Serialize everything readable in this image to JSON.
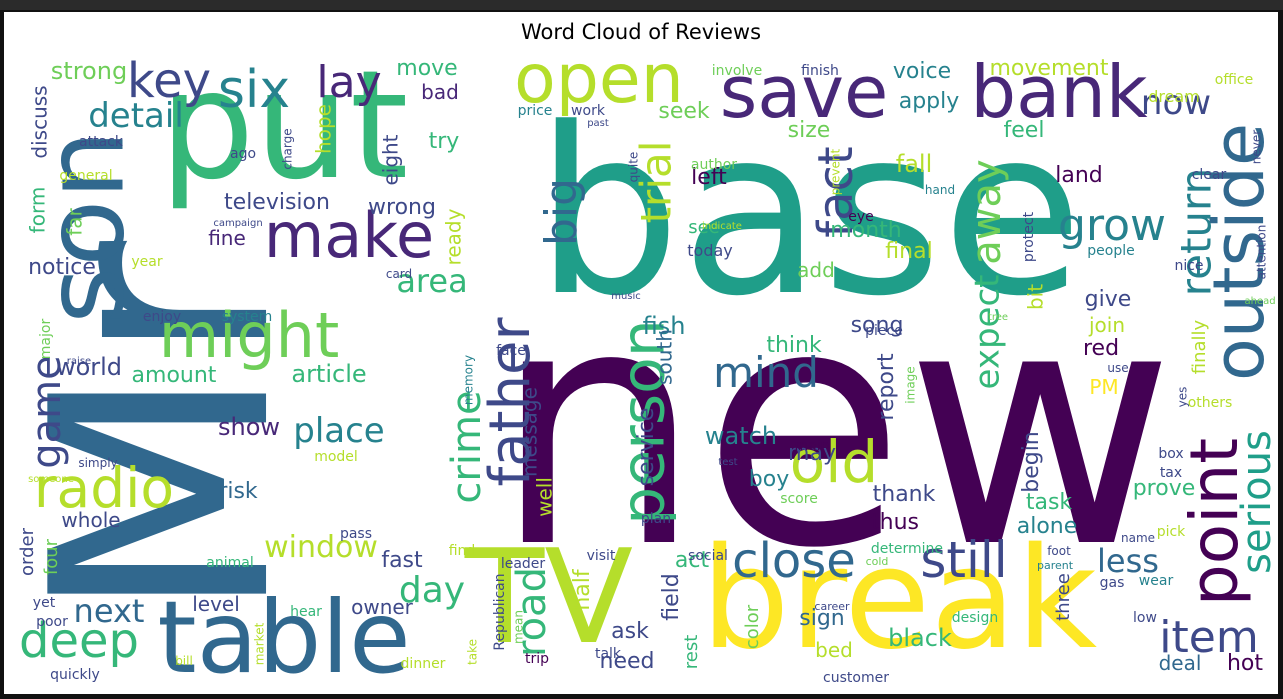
{
  "chart_data": {
    "type": "wordcloud",
    "title": "Word Cloud of Reviews",
    "background": "#ffffff",
    "palette": [
      "#440154",
      "#482878",
      "#3e4989",
      "#31688e",
      "#26828e",
      "#1f9e89",
      "#35b779",
      "#6ece58",
      "#b5de2b",
      "#fde725"
    ],
    "words": [
      {
        "text": "new",
        "color": "#440154"
      },
      {
        "text": "base",
        "color": "#1f9e89"
      },
      {
        "text": "Mr",
        "color": "#31688e"
      },
      {
        "text": "put",
        "color": "#35b779"
      },
      {
        "text": "break",
        "color": "#fde725"
      },
      {
        "text": "son",
        "color": "#31688e"
      },
      {
        "text": "TV",
        "color": "#b5de2b"
      },
      {
        "text": "table",
        "color": "#31688e"
      },
      {
        "text": "save",
        "color": "#482878"
      },
      {
        "text": "bank",
        "color": "#482878"
      },
      {
        "text": "open",
        "color": "#b5de2b"
      },
      {
        "text": "outside",
        "color": "#31688e"
      },
      {
        "text": "point",
        "color": "#440154"
      },
      {
        "text": "make",
        "color": "#482878"
      },
      {
        "text": "might",
        "color": "#6ece58"
      },
      {
        "text": "person",
        "color": "#35b779"
      },
      {
        "text": "old",
        "color": "#b5de2b"
      },
      {
        "text": "radio",
        "color": "#b5de2b"
      },
      {
        "text": "father",
        "color": "#3e4989"
      },
      {
        "text": "six",
        "color": "#26828e"
      },
      {
        "text": "close",
        "color": "#31688e"
      },
      {
        "text": "still",
        "color": "#3e4989"
      },
      {
        "text": "deep",
        "color": "#35b779"
      },
      {
        "text": "key",
        "color": "#3e4989"
      },
      {
        "text": "fact",
        "color": "#3e4989"
      },
      {
        "text": "return",
        "color": "#26828e"
      },
      {
        "text": "serious",
        "color": "#1f9e89"
      },
      {
        "text": "item",
        "color": "#3e4989"
      },
      {
        "text": "grow",
        "color": "#26828e"
      },
      {
        "text": "big",
        "color": "#31688e"
      },
      {
        "text": "trial",
        "color": "#b5de2b"
      },
      {
        "text": "mind",
        "color": "#31688e"
      },
      {
        "text": "crime",
        "color": "#35b779"
      },
      {
        "text": "lay",
        "color": "#482878"
      },
      {
        "text": "away",
        "color": "#6ece58"
      },
      {
        "text": "game",
        "color": "#3e4989"
      },
      {
        "text": "road",
        "color": "#35b779"
      },
      {
        "text": "expect",
        "color": "#35b779"
      },
      {
        "text": "detail",
        "color": "#26828e"
      },
      {
        "text": "place",
        "color": "#26828e"
      },
      {
        "text": "window",
        "color": "#b5de2b"
      },
      {
        "text": "day",
        "color": "#35b779"
      },
      {
        "text": "next",
        "color": "#31688e"
      },
      {
        "text": "now",
        "color": "#3e4989"
      },
      {
        "text": "area",
        "color": "#35b779"
      },
      {
        "text": "less",
        "color": "#31688e"
      },
      {
        "text": "fish",
        "color": "#26828e"
      },
      {
        "text": "watch",
        "color": "#26828e"
      },
      {
        "text": "article",
        "color": "#35b779"
      },
      {
        "text": "world",
        "color": "#3e4989"
      },
      {
        "text": "amount",
        "color": "#35b779"
      },
      {
        "text": "show",
        "color": "#482878"
      },
      {
        "text": "television",
        "color": "#3e4989"
      },
      {
        "text": "wrong",
        "color": "#3e4989"
      },
      {
        "text": "strong",
        "color": "#6ece58"
      },
      {
        "text": "move",
        "color": "#35b779"
      },
      {
        "text": "voice",
        "color": "#26828e"
      },
      {
        "text": "movement",
        "color": "#b5de2b"
      },
      {
        "text": "apply",
        "color": "#26828e"
      },
      {
        "text": "seek",
        "color": "#6ece58"
      },
      {
        "text": "size",
        "color": "#6ece58"
      },
      {
        "text": "feel",
        "color": "#35b779"
      },
      {
        "text": "fall",
        "color": "#b5de2b"
      },
      {
        "text": "left",
        "color": "#440154"
      },
      {
        "text": "month",
        "color": "#35b779"
      },
      {
        "text": "final",
        "color": "#b5de2b"
      },
      {
        "text": "land",
        "color": "#440154"
      },
      {
        "text": "add",
        "color": "#6ece58"
      },
      {
        "text": "song",
        "color": "#3e4989"
      },
      {
        "text": "give",
        "color": "#3e4989"
      },
      {
        "text": "join",
        "color": "#b5de2b"
      },
      {
        "text": "red",
        "color": "#440154"
      },
      {
        "text": "PM",
        "color": "#fde725"
      },
      {
        "text": "think",
        "color": "#35b779"
      },
      {
        "text": "may",
        "color": "#3e4989"
      },
      {
        "text": "boy",
        "color": "#26828e"
      },
      {
        "text": "report",
        "color": "#3e4989"
      },
      {
        "text": "begin",
        "color": "#3e4989"
      },
      {
        "text": "thank",
        "color": "#3e4989"
      },
      {
        "text": "task",
        "color": "#35b779"
      },
      {
        "text": "prove",
        "color": "#35b779"
      },
      {
        "text": "thus",
        "color": "#440154"
      },
      {
        "text": "alone",
        "color": "#26828e"
      },
      {
        "text": "risk",
        "color": "#31688e"
      },
      {
        "text": "whole",
        "color": "#3e4989"
      },
      {
        "text": "fine",
        "color": "#482878"
      },
      {
        "text": "notice",
        "color": "#3e4989"
      },
      {
        "text": "fast",
        "color": "#3e4989"
      },
      {
        "text": "owner",
        "color": "#3e4989"
      },
      {
        "text": "level",
        "color": "#3e4989"
      },
      {
        "text": "sign",
        "color": "#31688e"
      },
      {
        "text": "black",
        "color": "#35b779"
      },
      {
        "text": "bed",
        "color": "#b5de2b"
      },
      {
        "text": "need",
        "color": "#3e4989"
      },
      {
        "text": "ask",
        "color": "#3e4989"
      },
      {
        "text": "act",
        "color": "#35b779"
      },
      {
        "text": "deal",
        "color": "#31688e"
      },
      {
        "text": "hot",
        "color": "#440154"
      },
      {
        "text": "field",
        "color": "#3e4989"
      },
      {
        "text": "half",
        "color": "#b5de2b"
      },
      {
        "text": "service",
        "color": "#3e4989"
      },
      {
        "text": "south",
        "color": "#31688e"
      },
      {
        "text": "message",
        "color": "#3e4989"
      },
      {
        "text": "well",
        "color": "#b5de2b"
      },
      {
        "text": "bad",
        "color": "#482878"
      },
      {
        "text": "try",
        "color": "#35b779"
      },
      {
        "text": "hope",
        "color": "#b5de2b"
      },
      {
        "text": "eight",
        "color": "#3e4989"
      },
      {
        "text": "discuss",
        "color": "#3e4989"
      },
      {
        "text": "form",
        "color": "#35b779"
      },
      {
        "text": "far",
        "color": "#6ece58"
      },
      {
        "text": "ready",
        "color": "#b5de2b"
      },
      {
        "text": "see",
        "color": "#35b779"
      },
      {
        "text": "today",
        "color": "#3e4989"
      },
      {
        "text": "finally",
        "color": "#b5de2b"
      },
      {
        "text": "dream",
        "color": "#b5de2b"
      },
      {
        "text": "three",
        "color": "#3e4989"
      },
      {
        "text": "four",
        "color": "#6ece58"
      },
      {
        "text": "order",
        "color": "#3e4989"
      },
      {
        "text": "color",
        "color": "#6ece58"
      },
      {
        "text": "rest",
        "color": "#35b779"
      },
      {
        "text": "customer",
        "color": "#3e4989"
      },
      {
        "text": "social",
        "color": "#3e4989"
      },
      {
        "text": "design",
        "color": "#35b779"
      },
      {
        "text": "people",
        "color": "#26828e"
      },
      {
        "text": "box",
        "color": "#3e4989"
      },
      {
        "text": "tax",
        "color": "#3e4989"
      },
      {
        "text": "pick",
        "color": "#b5de2b"
      },
      {
        "text": "low",
        "color": "#3e4989"
      },
      {
        "text": "gas",
        "color": "#3e4989"
      },
      {
        "text": "wear",
        "color": "#26828e"
      },
      {
        "text": "clear",
        "color": "#3e4989"
      },
      {
        "text": "nice",
        "color": "#3e4989"
      },
      {
        "text": "hand",
        "color": "#26828e"
      },
      {
        "text": "eye",
        "color": "#440154"
      },
      {
        "text": "protect",
        "color": "#3e4989"
      },
      {
        "text": "bit",
        "color": "#b5de2b"
      },
      {
        "text": "office",
        "color": "#b5de2b"
      },
      {
        "text": "never",
        "color": "#3e4989"
      },
      {
        "text": "attention",
        "color": "#3e4989"
      },
      {
        "text": "ahead",
        "color": "#6ece58"
      },
      {
        "text": "yes",
        "color": "#3e4989"
      },
      {
        "text": "others",
        "color": "#b5de2b"
      },
      {
        "text": "use",
        "color": "#3e4989"
      },
      {
        "text": "name",
        "color": "#3e4989"
      },
      {
        "text": "foot",
        "color": "#3e4989"
      },
      {
        "text": "parent",
        "color": "#26828e"
      },
      {
        "text": "determine",
        "color": "#35b779"
      },
      {
        "text": "cold",
        "color": "#6ece58"
      },
      {
        "text": "career",
        "color": "#3e4989"
      },
      {
        "text": "tree",
        "color": "#6ece58"
      },
      {
        "text": "piece",
        "color": "#3e4989"
      },
      {
        "text": "main",
        "color": "#440154"
      },
      {
        "text": "test",
        "color": "#3e4989"
      },
      {
        "text": "image",
        "color": "#6ece58"
      },
      {
        "text": "score",
        "color": "#6ece58"
      },
      {
        "text": "plan",
        "color": "#3e4989"
      },
      {
        "text": "visit",
        "color": "#3e4989"
      },
      {
        "text": "leader",
        "color": "#3e4989"
      },
      {
        "text": "find",
        "color": "#b5de2b"
      },
      {
        "text": "face",
        "color": "#3e4989"
      },
      {
        "text": "memory",
        "color": "#26828e"
      },
      {
        "text": "music",
        "color": "#3e4989"
      },
      {
        "text": "Republican",
        "color": "#3e4989"
      },
      {
        "text": "mean",
        "color": "#6ece58"
      },
      {
        "text": "trip",
        "color": "#440154"
      },
      {
        "text": "talk",
        "color": "#3e4989"
      },
      {
        "text": "take",
        "color": "#b5de2b"
      },
      {
        "text": "dinner",
        "color": "#b5de2b"
      },
      {
        "text": "involve",
        "color": "#6ece58"
      },
      {
        "text": "finish",
        "color": "#3e4989"
      },
      {
        "text": "price",
        "color": "#26828e"
      },
      {
        "text": "work",
        "color": "#3e4989"
      },
      {
        "text": "past",
        "color": "#3e4989"
      },
      {
        "text": "quite",
        "color": "#3e4989"
      },
      {
        "text": "author",
        "color": "#6ece58"
      },
      {
        "text": "prevent",
        "color": "#b5de2b"
      },
      {
        "text": "indicate",
        "color": "#b5de2b"
      },
      {
        "text": "attack",
        "color": "#3e4989"
      },
      {
        "text": "ago",
        "color": "#3e4989"
      },
      {
        "text": "charge",
        "color": "#3e4989"
      },
      {
        "text": "general",
        "color": "#b5de2b"
      },
      {
        "text": "campaign",
        "color": "#3e4989"
      },
      {
        "text": "card",
        "color": "#3e4989"
      },
      {
        "text": "year",
        "color": "#b5de2b"
      },
      {
        "text": "enjoy",
        "color": "#3e4989"
      },
      {
        "text": "system",
        "color": "#26828e"
      },
      {
        "text": "major",
        "color": "#6ece58"
      },
      {
        "text": "raise",
        "color": "#3e4989"
      },
      {
        "text": "simply",
        "color": "#3e4989"
      },
      {
        "text": "someone",
        "color": "#b5de2b"
      },
      {
        "text": "model",
        "color": "#b5de2b"
      },
      {
        "text": "pass",
        "color": "#3e4989"
      },
      {
        "text": "animal",
        "color": "#35b779"
      },
      {
        "text": "yet",
        "color": "#3e4989"
      },
      {
        "text": "poor",
        "color": "#3e4989"
      },
      {
        "text": "quickly",
        "color": "#3e4989"
      },
      {
        "text": "hear",
        "color": "#35b779"
      },
      {
        "text": "market",
        "color": "#b5de2b"
      },
      {
        "text": "bill",
        "color": "#b5de2b"
      }
    ]
  }
}
